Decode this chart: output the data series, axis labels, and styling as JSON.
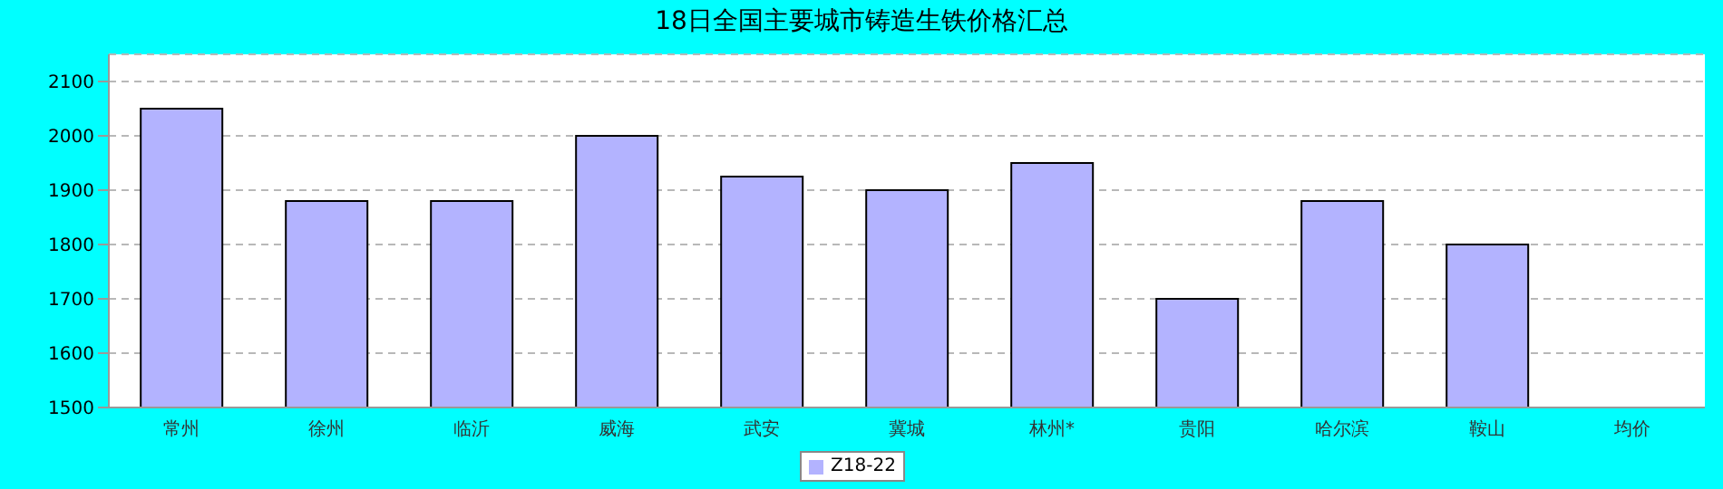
{
  "chart_data": {
    "type": "bar",
    "title": "18日全国主要城市铸造生铁价格汇总",
    "categories": [
      "常州",
      "徐州",
      "临沂",
      "威海",
      "武安",
      "冀城",
      "林州*",
      "贵阳",
      "哈尔滨",
      "鞍山",
      "均价"
    ],
    "series": [
      {
        "name": "Z18-22",
        "color": "#b3b3ff",
        "values": [
          2050,
          1880,
          1880,
          2000,
          1925,
          1900,
          1950,
          1700,
          1880,
          1800,
          null
        ]
      }
    ],
    "ylim": [
      1500,
      2150
    ],
    "yticks": [
      1500,
      1600,
      1700,
      1800,
      1900,
      2000,
      2100
    ],
    "grid": "y",
    "legend": "bottom"
  }
}
